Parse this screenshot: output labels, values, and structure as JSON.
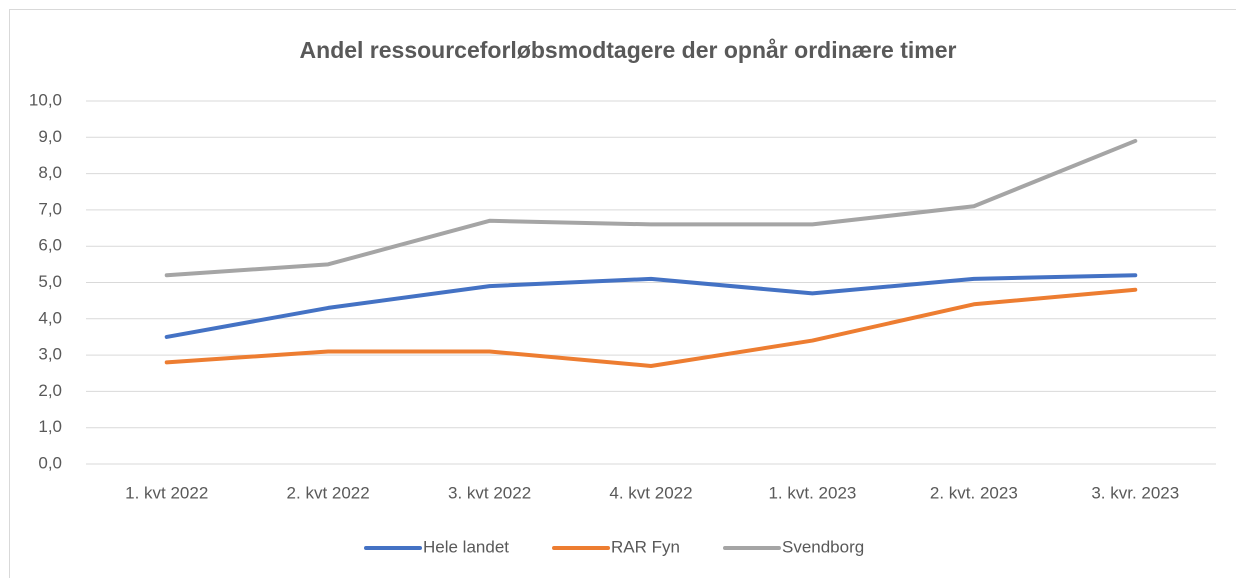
{
  "chart_data": {
    "type": "line",
    "title": "Andel ressourceforløbsmodtagere der opnår ordinære timer",
    "categories": [
      "1. kvt 2022",
      "2. kvt 2022",
      "3. kvt 2022",
      "4. kvt 2022",
      "1. kvt. 2023",
      "2. kvt. 2023",
      "3. kvr. 2023"
    ],
    "series": [
      {
        "name": "Hele landet",
        "color": "#4472c4",
        "values": [
          3.5,
          4.3,
          4.9,
          5.1,
          4.7,
          5.1,
          5.2
        ]
      },
      {
        "name": "RAR Fyn",
        "color": "#ed7d31",
        "values": [
          2.8,
          3.1,
          3.1,
          2.7,
          3.4,
          4.4,
          4.8
        ]
      },
      {
        "name": "Svendborg",
        "color": "#a5a5a5",
        "values": [
          5.2,
          5.5,
          6.7,
          6.6,
          6.6,
          7.1,
          8.9
        ]
      }
    ],
    "ylim": [
      0,
      10
    ],
    "yticks": [
      {
        "value": 0,
        "label": "0,0"
      },
      {
        "value": 1,
        "label": "1,0"
      },
      {
        "value": 2,
        "label": "2,0"
      },
      {
        "value": 3,
        "label": "3,0"
      },
      {
        "value": 4,
        "label": "4,0"
      },
      {
        "value": 5,
        "label": "5,0"
      },
      {
        "value": 6,
        "label": "6,0"
      },
      {
        "value": 7,
        "label": "7,0"
      },
      {
        "value": 8,
        "label": "8,0"
      },
      {
        "value": 9,
        "label": "9,0"
      },
      {
        "value": 10,
        "label": "10,0"
      }
    ],
    "grid": true,
    "legend": "bottom"
  }
}
